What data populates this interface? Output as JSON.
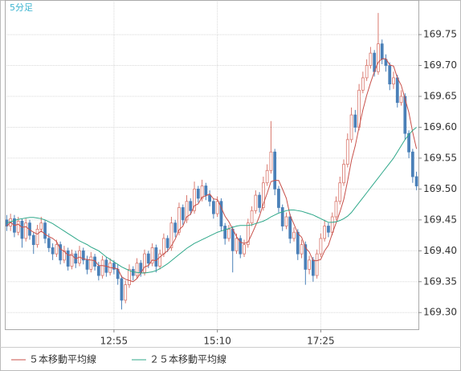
{
  "chart_data": {
    "type": "candlestick",
    "title": "5分足",
    "up_color": "#d9786e",
    "down_color": "#4a80b8",
    "xlim": [
      -0.5,
      107.5
    ],
    "xticks": [
      {
        "value": 28,
        "label": "12:55"
      },
      {
        "value": 55,
        "label": "15:10"
      },
      {
        "value": 82,
        "label": "17:25"
      }
    ],
    "ylim": [
      169.273,
      169.806
    ],
    "yticks": [
      {
        "value": 169.3,
        "label": "169.30"
      },
      {
        "value": 169.35,
        "label": "169.35"
      },
      {
        "value": 169.4,
        "label": "169.40"
      },
      {
        "value": 169.45,
        "label": "169.45"
      },
      {
        "value": 169.5,
        "label": "169.50"
      },
      {
        "value": 169.55,
        "label": "169.55"
      },
      {
        "value": 169.6,
        "label": "169.60"
      },
      {
        "value": 169.65,
        "label": "169.65"
      },
      {
        "value": 169.7,
        "label": "169.70"
      },
      {
        "value": 169.75,
        "label": "169.75"
      }
    ],
    "grid": true,
    "open": [
      169.45,
      169.44,
      169.452,
      169.43,
      169.448,
      169.42,
      169.445,
      169.425,
      169.41,
      169.435,
      169.445,
      169.42,
      169.405,
      169.395,
      169.41,
      169.385,
      169.4,
      169.375,
      169.395,
      169.38,
      169.4,
      169.385,
      169.37,
      169.39,
      169.375,
      169.36,
      169.385,
      169.365,
      169.38,
      169.37,
      169.355,
      169.32,
      169.345,
      169.37,
      169.36,
      169.38,
      169.365,
      169.395,
      169.38,
      169.405,
      169.375,
      169.395,
      169.42,
      169.405,
      169.445,
      169.43,
      169.47,
      169.45,
      169.48,
      169.465,
      169.5,
      169.485,
      169.505,
      169.49,
      169.48,
      169.46,
      169.48,
      169.44,
      169.42,
      169.435,
      169.4,
      169.42,
      169.395,
      169.41,
      169.445,
      169.465,
      169.49,
      169.47,
      169.51,
      169.53,
      169.56,
      169.5,
      169.47,
      169.44,
      169.455,
      169.42,
      169.43,
      169.395,
      169.41,
      169.37,
      169.385,
      169.36,
      169.395,
      169.42,
      169.44,
      169.43,
      169.455,
      169.48,
      169.51,
      169.54,
      169.58,
      169.62,
      169.6,
      169.66,
      169.68,
      169.7,
      169.72,
      169.69,
      169.735,
      169.71,
      169.7,
      169.67,
      169.68,
      169.64,
      169.65,
      169.59,
      169.56,
      169.52
    ],
    "high": [
      169.458,
      169.46,
      169.458,
      169.455,
      169.452,
      169.452,
      169.45,
      169.43,
      169.442,
      169.455,
      169.45,
      169.428,
      169.412,
      169.418,
      169.415,
      169.408,
      169.405,
      169.402,
      169.4,
      169.408,
      169.405,
      169.392,
      169.398,
      169.395,
      169.382,
      169.392,
      169.39,
      169.388,
      169.385,
      169.378,
      169.36,
      169.352,
      169.378,
      169.375,
      169.388,
      169.385,
      169.402,
      169.4,
      169.412,
      169.41,
      169.402,
      169.428,
      169.425,
      169.455,
      169.45,
      169.478,
      169.475,
      169.49,
      169.485,
      169.512,
      169.505,
      169.515,
      169.51,
      169.498,
      169.485,
      169.488,
      169.485,
      169.445,
      169.442,
      169.44,
      169.428,
      169.425,
      169.418,
      169.452,
      169.472,
      169.498,
      169.495,
      169.52,
      169.54,
      169.61,
      169.565,
      169.505,
      169.475,
      169.462,
      169.46,
      169.438,
      169.435,
      169.418,
      169.415,
      169.392,
      169.39,
      169.402,
      169.428,
      169.45,
      169.445,
      169.462,
      169.488,
      169.52,
      169.548,
      169.59,
      169.632,
      169.628,
      169.67,
      169.69,
      169.71,
      169.73,
      169.725,
      169.785,
      169.742,
      169.718,
      169.705,
      169.69,
      169.685,
      169.66,
      169.655,
      169.595,
      169.565,
      169.528
    ],
    "low": [
      169.432,
      169.432,
      169.422,
      169.425,
      169.405,
      169.415,
      169.418,
      169.395,
      169.405,
      169.43,
      169.412,
      169.398,
      169.385,
      169.39,
      169.378,
      169.38,
      169.368,
      169.37,
      169.372,
      169.375,
      169.378,
      169.362,
      169.365,
      169.368,
      169.352,
      169.355,
      169.358,
      169.36,
      169.362,
      169.345,
      169.305,
      169.315,
      169.34,
      169.352,
      169.355,
      169.358,
      169.36,
      169.372,
      169.375,
      169.365,
      169.37,
      169.39,
      169.398,
      169.4,
      169.422,
      169.425,
      169.442,
      169.445,
      169.458,
      169.46,
      169.478,
      169.48,
      169.482,
      169.472,
      169.452,
      169.455,
      169.432,
      169.41,
      169.415,
      169.365,
      169.395,
      169.388,
      169.39,
      169.405,
      169.44,
      169.46,
      169.462,
      169.465,
      169.505,
      169.525,
      169.49,
      169.462,
      169.432,
      169.435,
      169.412,
      169.415,
      169.385,
      169.388,
      169.345,
      169.362,
      169.35,
      169.355,
      169.39,
      169.415,
      169.422,
      169.425,
      169.45,
      169.475,
      169.505,
      169.535,
      169.575,
      169.592,
      169.595,
      169.655,
      169.675,
      169.695,
      169.682,
      169.685,
      169.702,
      169.69,
      169.66,
      169.662,
      169.632,
      169.635,
      169.58,
      169.55,
      169.51,
      169.498
    ],
    "close": [
      169.44,
      169.452,
      169.43,
      169.448,
      169.42,
      169.445,
      169.425,
      169.41,
      169.435,
      169.445,
      169.42,
      169.405,
      169.395,
      169.41,
      169.385,
      169.4,
      169.375,
      169.395,
      169.38,
      169.4,
      169.385,
      169.37,
      169.39,
      169.375,
      169.36,
      169.385,
      169.365,
      169.38,
      169.37,
      169.355,
      169.32,
      169.345,
      169.37,
      169.36,
      169.38,
      169.365,
      169.395,
      169.38,
      169.405,
      169.375,
      169.395,
      169.42,
      169.405,
      169.445,
      169.43,
      169.47,
      169.45,
      169.48,
      169.465,
      169.5,
      169.485,
      169.505,
      169.49,
      169.48,
      169.46,
      169.48,
      169.44,
      169.42,
      169.435,
      169.4,
      169.42,
      169.395,
      169.41,
      169.445,
      169.465,
      169.49,
      169.47,
      169.51,
      169.53,
      169.56,
      169.5,
      169.47,
      169.44,
      169.455,
      169.42,
      169.43,
      169.395,
      169.41,
      169.37,
      169.385,
      169.36,
      169.395,
      169.42,
      169.44,
      169.43,
      169.455,
      169.48,
      169.51,
      169.54,
      169.58,
      169.62,
      169.6,
      169.66,
      169.68,
      169.7,
      169.72,
      169.69,
      169.735,
      169.71,
      169.7,
      169.67,
      169.68,
      169.64,
      169.65,
      169.59,
      169.56,
      169.52,
      169.505
    ],
    "series": [
      {
        "name": "５本移動平均線",
        "color": "#c8504a",
        "values": [
          169.44,
          169.446,
          169.441,
          169.443,
          169.438,
          169.439,
          169.434,
          169.43,
          169.427,
          169.432,
          169.427,
          169.423,
          169.42,
          169.415,
          169.403,
          169.399,
          169.393,
          169.393,
          169.387,
          169.39,
          169.387,
          169.386,
          169.385,
          169.384,
          169.376,
          169.376,
          169.375,
          169.373,
          169.372,
          169.371,
          169.358,
          169.354,
          169.352,
          169.35,
          169.355,
          169.364,
          169.374,
          169.376,
          169.385,
          169.384,
          169.39,
          169.395,
          169.4,
          169.408,
          169.419,
          169.434,
          169.44,
          169.455,
          169.459,
          169.473,
          169.476,
          169.487,
          169.489,
          169.492,
          169.484,
          169.483,
          169.47,
          169.456,
          169.447,
          169.435,
          169.423,
          169.414,
          169.412,
          169.414,
          169.427,
          169.441,
          169.456,
          169.476,
          169.493,
          169.512,
          169.514,
          169.514,
          169.5,
          169.485,
          169.457,
          169.443,
          169.428,
          169.422,
          169.405,
          169.398,
          169.384,
          169.384,
          169.386,
          169.4,
          169.409,
          169.428,
          169.445,
          169.463,
          169.483,
          169.513,
          169.546,
          169.57,
          169.6,
          169.628,
          169.652,
          169.672,
          169.69,
          169.705,
          169.711,
          169.711,
          169.701,
          169.699,
          169.68,
          169.668,
          169.646,
          169.624,
          169.592,
          169.565
        ]
      },
      {
        "name": "２５本移動平均線",
        "color": "#2fa88a",
        "values": [
          169.445,
          169.447,
          169.449,
          169.451,
          169.452,
          169.453,
          169.454,
          169.454,
          169.453,
          169.452,
          169.45,
          169.447,
          169.444,
          169.44,
          169.436,
          169.432,
          169.428,
          169.424,
          169.42,
          169.416,
          169.413,
          169.41,
          169.406,
          169.403,
          169.4,
          169.395,
          169.39,
          169.386,
          169.382,
          169.378,
          169.374,
          169.371,
          169.368,
          169.366,
          169.365,
          169.364,
          169.364,
          169.365,
          169.366,
          169.368,
          169.371,
          169.375,
          169.379,
          169.384,
          169.389,
          169.394,
          169.399,
          169.404,
          169.408,
          169.412,
          169.415,
          169.418,
          169.421,
          169.424,
          169.427,
          169.43,
          169.432,
          169.434,
          169.436,
          169.438,
          169.44,
          169.441,
          169.441,
          169.441,
          169.442,
          169.444,
          169.446,
          169.448,
          169.451,
          169.455,
          169.458,
          169.461,
          169.463,
          169.465,
          169.466,
          169.466,
          169.465,
          169.464,
          169.462,
          169.46,
          169.458,
          169.455,
          169.452,
          169.449,
          169.446,
          169.446,
          169.447,
          169.449,
          169.452,
          169.456,
          169.462,
          169.47,
          169.478,
          169.486,
          169.494,
          169.502,
          169.51,
          169.518,
          169.526,
          169.534,
          169.542,
          169.55,
          169.56,
          169.57,
          169.58,
          169.588,
          169.595,
          169.6
        ]
      }
    ]
  }
}
